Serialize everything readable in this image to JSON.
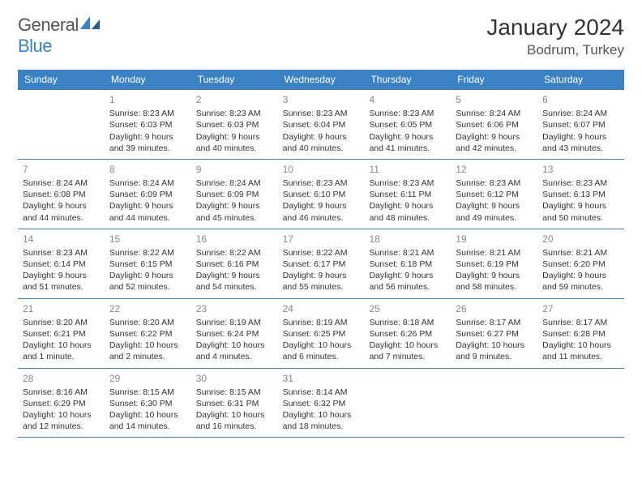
{
  "brand": {
    "part1": "General",
    "part2": "Blue"
  },
  "title": "January 2024",
  "location": "Bodrum, Turkey",
  "colors": {
    "header_bg": "#3b82c4",
    "header_text": "#ffffff",
    "border": "#4a7ba8",
    "day_num": "#888888",
    "body_text": "#333333",
    "background": "#ffffff"
  },
  "typography": {
    "title_fontsize": 28,
    "location_fontsize": 17,
    "header_fontsize": 12,
    "daynum_fontsize": 12,
    "body_fontsize": 10.5
  },
  "day_labels": [
    "Sunday",
    "Monday",
    "Tuesday",
    "Wednesday",
    "Thursday",
    "Friday",
    "Saturday"
  ],
  "weeks": [
    [
      {
        "num": "",
        "sunrise": "",
        "sunset": "",
        "daylight": ""
      },
      {
        "num": "1",
        "sunrise": "Sunrise: 8:23 AM",
        "sunset": "Sunset: 6:03 PM",
        "daylight": "Daylight: 9 hours and 39 minutes."
      },
      {
        "num": "2",
        "sunrise": "Sunrise: 8:23 AM",
        "sunset": "Sunset: 6:03 PM",
        "daylight": "Daylight: 9 hours and 40 minutes."
      },
      {
        "num": "3",
        "sunrise": "Sunrise: 8:23 AM",
        "sunset": "Sunset: 6:04 PM",
        "daylight": "Daylight: 9 hours and 40 minutes."
      },
      {
        "num": "4",
        "sunrise": "Sunrise: 8:23 AM",
        "sunset": "Sunset: 6:05 PM",
        "daylight": "Daylight: 9 hours and 41 minutes."
      },
      {
        "num": "5",
        "sunrise": "Sunrise: 8:24 AM",
        "sunset": "Sunset: 6:06 PM",
        "daylight": "Daylight: 9 hours and 42 minutes."
      },
      {
        "num": "6",
        "sunrise": "Sunrise: 8:24 AM",
        "sunset": "Sunset: 6:07 PM",
        "daylight": "Daylight: 9 hours and 43 minutes."
      }
    ],
    [
      {
        "num": "7",
        "sunrise": "Sunrise: 8:24 AM",
        "sunset": "Sunset: 6:08 PM",
        "daylight": "Daylight: 9 hours and 44 minutes."
      },
      {
        "num": "8",
        "sunrise": "Sunrise: 8:24 AM",
        "sunset": "Sunset: 6:09 PM",
        "daylight": "Daylight: 9 hours and 44 minutes."
      },
      {
        "num": "9",
        "sunrise": "Sunrise: 8:24 AM",
        "sunset": "Sunset: 6:09 PM",
        "daylight": "Daylight: 9 hours and 45 minutes."
      },
      {
        "num": "10",
        "sunrise": "Sunrise: 8:23 AM",
        "sunset": "Sunset: 6:10 PM",
        "daylight": "Daylight: 9 hours and 46 minutes."
      },
      {
        "num": "11",
        "sunrise": "Sunrise: 8:23 AM",
        "sunset": "Sunset: 6:11 PM",
        "daylight": "Daylight: 9 hours and 48 minutes."
      },
      {
        "num": "12",
        "sunrise": "Sunrise: 8:23 AM",
        "sunset": "Sunset: 6:12 PM",
        "daylight": "Daylight: 9 hours and 49 minutes."
      },
      {
        "num": "13",
        "sunrise": "Sunrise: 8:23 AM",
        "sunset": "Sunset: 6:13 PM",
        "daylight": "Daylight: 9 hours and 50 minutes."
      }
    ],
    [
      {
        "num": "14",
        "sunrise": "Sunrise: 8:23 AM",
        "sunset": "Sunset: 6:14 PM",
        "daylight": "Daylight: 9 hours and 51 minutes."
      },
      {
        "num": "15",
        "sunrise": "Sunrise: 8:22 AM",
        "sunset": "Sunset: 6:15 PM",
        "daylight": "Daylight: 9 hours and 52 minutes."
      },
      {
        "num": "16",
        "sunrise": "Sunrise: 8:22 AM",
        "sunset": "Sunset: 6:16 PM",
        "daylight": "Daylight: 9 hours and 54 minutes."
      },
      {
        "num": "17",
        "sunrise": "Sunrise: 8:22 AM",
        "sunset": "Sunset: 6:17 PM",
        "daylight": "Daylight: 9 hours and 55 minutes."
      },
      {
        "num": "18",
        "sunrise": "Sunrise: 8:21 AM",
        "sunset": "Sunset: 6:18 PM",
        "daylight": "Daylight: 9 hours and 56 minutes."
      },
      {
        "num": "19",
        "sunrise": "Sunrise: 8:21 AM",
        "sunset": "Sunset: 6:19 PM",
        "daylight": "Daylight: 9 hours and 58 minutes."
      },
      {
        "num": "20",
        "sunrise": "Sunrise: 8:21 AM",
        "sunset": "Sunset: 6:20 PM",
        "daylight": "Daylight: 9 hours and 59 minutes."
      }
    ],
    [
      {
        "num": "21",
        "sunrise": "Sunrise: 8:20 AM",
        "sunset": "Sunset: 6:21 PM",
        "daylight": "Daylight: 10 hours and 1 minute."
      },
      {
        "num": "22",
        "sunrise": "Sunrise: 8:20 AM",
        "sunset": "Sunset: 6:22 PM",
        "daylight": "Daylight: 10 hours and 2 minutes."
      },
      {
        "num": "23",
        "sunrise": "Sunrise: 8:19 AM",
        "sunset": "Sunset: 6:24 PM",
        "daylight": "Daylight: 10 hours and 4 minutes."
      },
      {
        "num": "24",
        "sunrise": "Sunrise: 8:19 AM",
        "sunset": "Sunset: 6:25 PM",
        "daylight": "Daylight: 10 hours and 6 minutes."
      },
      {
        "num": "25",
        "sunrise": "Sunrise: 8:18 AM",
        "sunset": "Sunset: 6:26 PM",
        "daylight": "Daylight: 10 hours and 7 minutes."
      },
      {
        "num": "26",
        "sunrise": "Sunrise: 8:17 AM",
        "sunset": "Sunset: 6:27 PM",
        "daylight": "Daylight: 10 hours and 9 minutes."
      },
      {
        "num": "27",
        "sunrise": "Sunrise: 8:17 AM",
        "sunset": "Sunset: 6:28 PM",
        "daylight": "Daylight: 10 hours and 11 minutes."
      }
    ],
    [
      {
        "num": "28",
        "sunrise": "Sunrise: 8:16 AM",
        "sunset": "Sunset: 6:29 PM",
        "daylight": "Daylight: 10 hours and 12 minutes."
      },
      {
        "num": "29",
        "sunrise": "Sunrise: 8:15 AM",
        "sunset": "Sunset: 6:30 PM",
        "daylight": "Daylight: 10 hours and 14 minutes."
      },
      {
        "num": "30",
        "sunrise": "Sunrise: 8:15 AM",
        "sunset": "Sunset: 6:31 PM",
        "daylight": "Daylight: 10 hours and 16 minutes."
      },
      {
        "num": "31",
        "sunrise": "Sunrise: 8:14 AM",
        "sunset": "Sunset: 6:32 PM",
        "daylight": "Daylight: 10 hours and 18 minutes."
      },
      {
        "num": "",
        "sunrise": "",
        "sunset": "",
        "daylight": ""
      },
      {
        "num": "",
        "sunrise": "",
        "sunset": "",
        "daylight": ""
      },
      {
        "num": "",
        "sunrise": "",
        "sunset": "",
        "daylight": ""
      }
    ]
  ]
}
